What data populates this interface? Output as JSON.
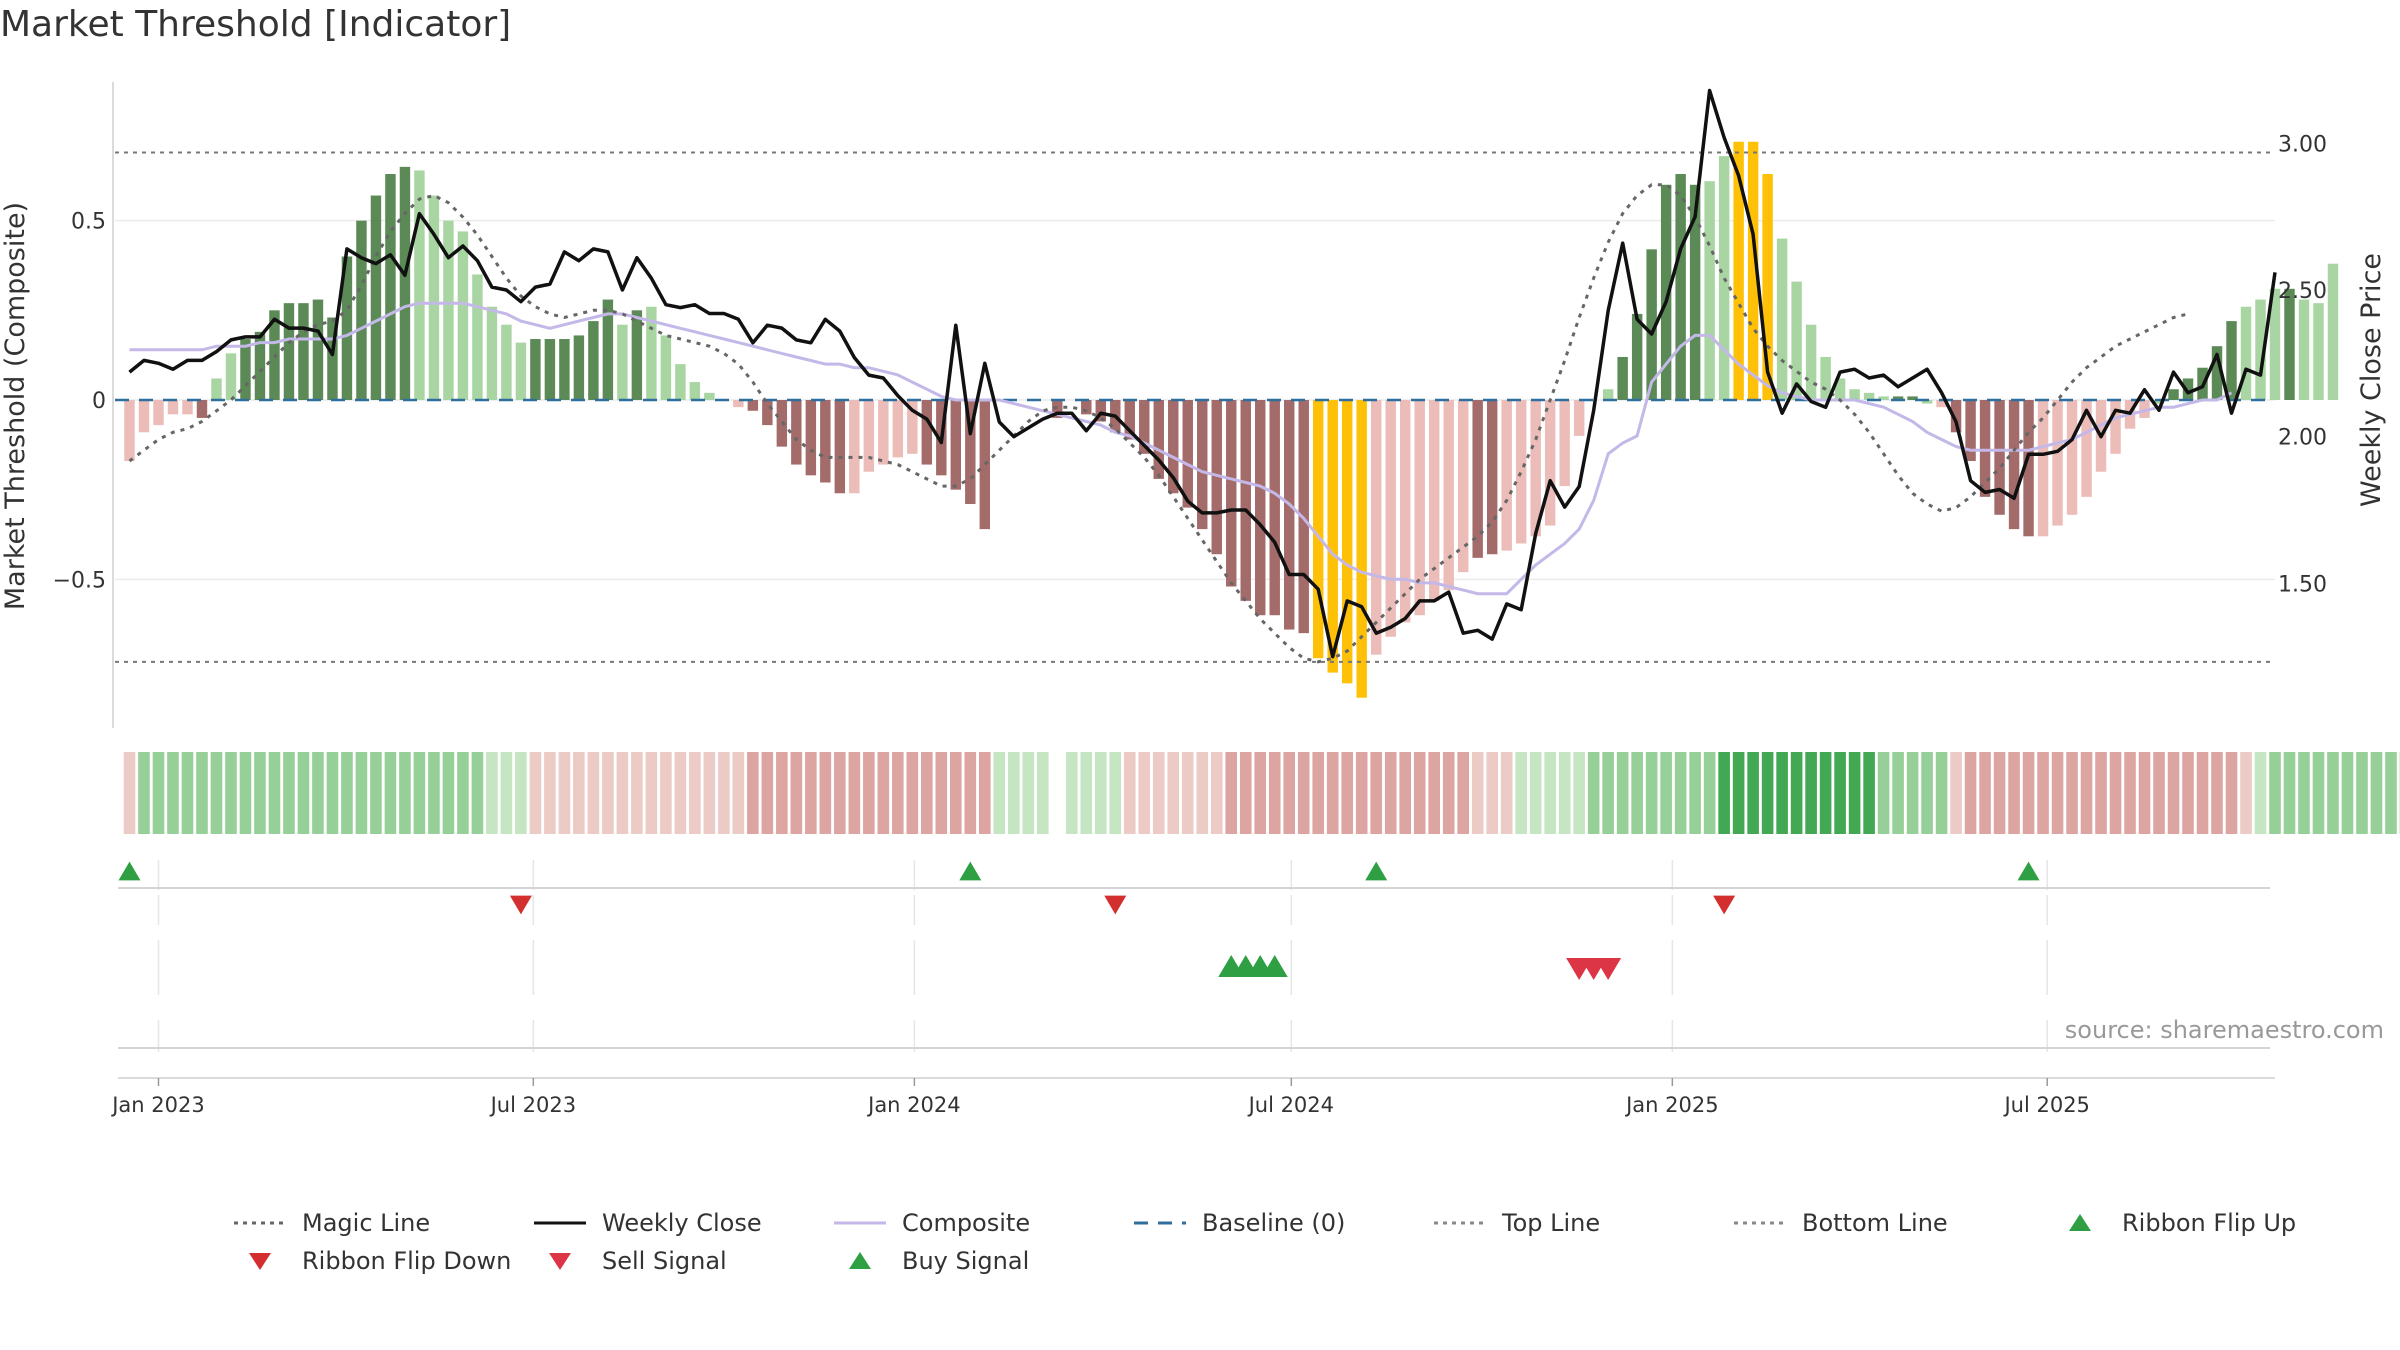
{
  "title": "Market Threshold [Indicator]",
  "source": "source: sharemaestro.com",
  "colors": {
    "strong_green": "#5b8a57",
    "light_green": "#a8d5a2",
    "strong_red": "#a36c6a",
    "light_red": "#ebbcb8",
    "gold": "#ffc107",
    "magic_line": "#666666",
    "weekly_close": "#111111",
    "composite": "#c3b8e8",
    "baseline": "#2e6f9e",
    "top_bottom_line": "#777777",
    "buy_green": "#2ea043",
    "sell_red": "#dc3545",
    "flip_down_red": "#d32f2f"
  },
  "chart_data": {
    "type": "bar",
    "x_axis": {
      "type": "date",
      "range": [
        "2022-12-11",
        "2025-10-19"
      ],
      "ticks": [
        {
          "date": "2023-01-01",
          "label": "Jan 2023"
        },
        {
          "date": "2023-07-01",
          "label": "Jul 2023"
        },
        {
          "date": "2024-01-01",
          "label": "Jan 2024"
        },
        {
          "date": "2024-07-01",
          "label": "Jul 2024"
        },
        {
          "date": "2025-01-01",
          "label": "Jan 2025"
        },
        {
          "date": "2025-07-01",
          "label": "Jul 2025"
        }
      ]
    },
    "y_left": {
      "label": "Market Threshold (Composite)",
      "range": [
        -0.92,
        0.92
      ],
      "ticks": [
        {
          "value": 0.5,
          "label": "0.5"
        },
        {
          "value": 0,
          "label": "0"
        },
        {
          "value": -0.5,
          "label": "−0.5"
        }
      ]
    },
    "y_right": {
      "label": "Weekly Close Price",
      "range": [
        1.0,
        3.25
      ],
      "ticks": [
        {
          "value": 1.5,
          "label": "1.50"
        },
        {
          "value": 2.0,
          "label": "2.00"
        },
        {
          "value": 2.5,
          "label": "2.50"
        },
        {
          "value": 3.0,
          "label": "3.00"
        }
      ]
    },
    "start_date": "2022-12-18",
    "bars": [
      -0.17,
      -0.09,
      -0.07,
      -0.04,
      -0.04,
      -0.05,
      0.06,
      0.13,
      0.17,
      0.19,
      0.25,
      0.27,
      0.27,
      0.28,
      0.23,
      0.4,
      0.5,
      0.57,
      0.63,
      0.65,
      0.64,
      0.57,
      0.5,
      0.47,
      0.35,
      0.26,
      0.21,
      0.16,
      0.17,
      0.17,
      0.17,
      0.18,
      0.22,
      0.28,
      0.21,
      0.25,
      0.26,
      0.18,
      0.1,
      0.05,
      0.02,
      0.0,
      -0.02,
      -0.03,
      -0.07,
      -0.13,
      -0.18,
      -0.21,
      -0.23,
      -0.26,
      -0.26,
      -0.2,
      -0.18,
      -0.16,
      -0.15,
      -0.18,
      -0.21,
      -0.25,
      -0.29,
      -0.36,
      0.0,
      0.0,
      0.0,
      0.0,
      -0.05,
      0.0,
      -0.04,
      -0.06,
      -0.09,
      -0.11,
      -0.15,
      -0.22,
      -0.26,
      -0.3,
      -0.36,
      -0.43,
      -0.52,
      -0.56,
      -0.6,
      -0.6,
      -0.64,
      -0.65,
      -0.72,
      -0.76,
      -0.79,
      -0.83,
      -0.71,
      -0.66,
      -0.62,
      -0.6,
      -0.56,
      -0.53,
      -0.48,
      -0.44,
      -0.43,
      -0.42,
      -0.4,
      -0.38,
      -0.35,
      -0.24,
      -0.1,
      0.0,
      0.03,
      0.12,
      0.24,
      0.42,
      0.6,
      0.63,
      0.6,
      0.61,
      0.68,
      0.72,
      0.72,
      0.63,
      0.45,
      0.33,
      0.21,
      0.12,
      0.06,
      0.03,
      0.02,
      0.01,
      0.01,
      0.01,
      -0.01,
      -0.02,
      -0.09,
      -0.17,
      -0.27,
      -0.32,
      -0.36,
      -0.38,
      -0.38,
      -0.35,
      -0.32,
      -0.27,
      -0.2,
      -0.15,
      -0.08,
      -0.05,
      -0.01,
      0.03,
      0.06,
      0.09,
      0.15,
      0.22,
      0.26,
      0.28,
      0.31,
      0.31,
      0.28,
      0.27,
      0.38
    ],
    "bar_colors": [
      "lr",
      "lr",
      "lr",
      "lr",
      "lr",
      "r",
      "lg",
      "lg",
      "g",
      "g",
      "g",
      "g",
      "g",
      "g",
      "g",
      "g",
      "g",
      "g",
      "g",
      "g",
      "lg",
      "lg",
      "lg",
      "lg",
      "lg",
      "lg",
      "lg",
      "lg",
      "g",
      "g",
      "g",
      "g",
      "g",
      "g",
      "lg",
      "g",
      "lg",
      "lg",
      "lg",
      "lg",
      "lg",
      "lr",
      "lr",
      "r",
      "r",
      "r",
      "r",
      "r",
      "r",
      "r",
      "lr",
      "lr",
      "lr",
      "lr",
      "lr",
      "r",
      "r",
      "r",
      "r",
      "r",
      "lg",
      "lg",
      "lg",
      "lg",
      "r",
      "lg",
      "r",
      "r",
      "r",
      "r",
      "r",
      "r",
      "r",
      "r",
      "r",
      "r",
      "r",
      "r",
      "r",
      "r",
      "r",
      "r",
      "y",
      "y",
      "y",
      "y",
      "lr",
      "lr",
      "lr",
      "lr",
      "lr",
      "lr",
      "lr",
      "r",
      "r",
      "lr",
      "lr",
      "lr",
      "lr",
      "lr",
      "lr",
      "lg",
      "lg",
      "g",
      "g",
      "g",
      "g",
      "g",
      "g",
      "lg",
      "lg",
      "y",
      "y",
      "y",
      "lg",
      "lg",
      "lg",
      "lg",
      "lg",
      "lg",
      "lg",
      "lg",
      "g",
      "g",
      "lg",
      "lr",
      "r",
      "r",
      "r",
      "r",
      "r",
      "r",
      "lr",
      "lr",
      "lr",
      "lr",
      "lr",
      "lr",
      "lr",
      "lr",
      "lg",
      "g",
      "g",
      "g",
      "g",
      "g",
      "lg",
      "lg",
      "lg",
      "g"
    ],
    "series": [
      {
        "name": "Magic Line",
        "axis": "left",
        "style": "dotted",
        "values": [
          -0.17,
          -0.14,
          -0.11,
          -0.09,
          -0.08,
          -0.06,
          -0.03,
          0.0,
          0.04,
          0.08,
          0.12,
          0.16,
          0.19,
          0.21,
          0.22,
          0.25,
          0.32,
          0.4,
          0.47,
          0.52,
          0.56,
          0.57,
          0.55,
          0.51,
          0.46,
          0.4,
          0.34,
          0.29,
          0.26,
          0.24,
          0.23,
          0.24,
          0.25,
          0.25,
          0.24,
          0.22,
          0.2,
          0.18,
          0.17,
          0.16,
          0.15,
          0.13,
          0.1,
          0.05,
          -0.01,
          -0.06,
          -0.11,
          -0.14,
          -0.16,
          -0.16,
          -0.16,
          -0.16,
          -0.17,
          -0.18,
          -0.2,
          -0.22,
          -0.24,
          -0.24,
          -0.22,
          -0.18,
          -0.14,
          -0.1,
          -0.06,
          -0.03,
          -0.02,
          -0.02,
          -0.03,
          -0.05,
          -0.08,
          -0.12,
          -0.16,
          -0.21,
          -0.27,
          -0.33,
          -0.39,
          -0.45,
          -0.51,
          -0.56,
          -0.61,
          -0.65,
          -0.69,
          -0.72,
          -0.73,
          -0.72,
          -0.7,
          -0.66,
          -0.62,
          -0.58,
          -0.54,
          -0.5,
          -0.47,
          -0.44,
          -0.41,
          -0.38,
          -0.34,
          -0.28,
          -0.2,
          -0.11,
          0.0,
          0.11,
          0.23,
          0.34,
          0.44,
          0.52,
          0.57,
          0.6,
          0.6,
          0.57,
          0.51,
          0.43,
          0.34,
          0.27,
          0.2,
          0.15,
          0.11,
          0.08,
          0.05,
          0.03,
          0.0,
          -0.04,
          -0.09,
          -0.15,
          -0.21,
          -0.26,
          -0.29,
          -0.31,
          -0.3,
          -0.27,
          -0.23,
          -0.19,
          -0.14,
          -0.09,
          -0.05,
          0.0,
          0.05,
          0.09,
          0.12,
          0.15,
          0.17,
          0.19,
          0.21,
          0.23,
          0.24
        ]
      },
      {
        "name": "Weekly Close",
        "axis": "right",
        "style": "solid",
        "values": [
          2.22,
          2.26,
          2.25,
          2.23,
          2.26,
          2.26,
          2.29,
          2.33,
          2.34,
          2.34,
          2.4,
          2.37,
          2.37,
          2.36,
          2.28,
          2.64,
          2.61,
          2.59,
          2.62,
          2.55,
          2.76,
          2.69,
          2.61,
          2.65,
          2.6,
          2.51,
          2.5,
          2.46,
          2.51,
          2.52,
          2.63,
          2.6,
          2.64,
          2.63,
          2.5,
          2.61,
          2.54,
          2.45,
          2.44,
          2.45,
          2.42,
          2.42,
          2.4,
          2.32,
          2.38,
          2.37,
          2.33,
          2.32,
          2.4,
          2.36,
          2.27,
          2.21,
          2.2,
          2.14,
          2.09,
          2.06,
          1.98,
          2.38,
          2.01,
          2.25,
          2.05,
          2.0,
          2.03,
          2.06,
          2.08,
          2.08,
          2.02,
          2.08,
          2.07,
          2.02,
          1.97,
          1.92,
          1.86,
          1.78,
          1.74,
          1.74,
          1.75,
          1.75,
          1.7,
          1.64,
          1.53,
          1.53,
          1.48,
          1.25,
          1.44,
          1.42,
          1.33,
          1.35,
          1.38,
          1.44,
          1.44,
          1.47,
          1.33,
          1.34,
          1.31,
          1.43,
          1.41,
          1.67,
          1.85,
          1.76,
          1.83,
          2.09,
          2.43,
          2.66,
          2.4,
          2.35,
          2.46,
          2.64,
          2.75,
          3.18,
          3.02,
          2.89,
          2.69,
          2.22,
          2.08,
          2.18,
          2.12,
          2.1,
          2.22,
          2.23,
          2.2,
          2.21,
          2.17,
          2.2,
          2.23,
          2.15,
          2.05,
          1.85,
          1.81,
          1.82,
          1.79,
          1.94,
          1.94,
          1.95,
          1.99,
          2.09,
          2.0,
          2.09,
          2.08,
          2.16,
          2.09,
          2.22,
          2.15,
          2.17,
          2.28,
          2.08,
          2.23,
          2.21,
          2.56
        ]
      },
      {
        "name": "Composite",
        "axis": "left",
        "style": "solid",
        "values": [
          0.14,
          0.14,
          0.14,
          0.14,
          0.14,
          0.14,
          0.15,
          0.15,
          0.15,
          0.16,
          0.16,
          0.17,
          0.17,
          0.17,
          0.17,
          0.18,
          0.2,
          0.22,
          0.24,
          0.26,
          0.27,
          0.27,
          0.27,
          0.27,
          0.26,
          0.25,
          0.24,
          0.22,
          0.21,
          0.2,
          0.21,
          0.22,
          0.23,
          0.24,
          0.24,
          0.23,
          0.22,
          0.21,
          0.2,
          0.19,
          0.18,
          0.17,
          0.16,
          0.15,
          0.14,
          0.13,
          0.12,
          0.11,
          0.1,
          0.1,
          0.09,
          0.09,
          0.08,
          0.07,
          0.05,
          0.03,
          0.01,
          0.0,
          0.0,
          0.0,
          0.0,
          -0.01,
          -0.02,
          -0.03,
          -0.04,
          -0.05,
          -0.06,
          -0.07,
          -0.09,
          -0.1,
          -0.12,
          -0.14,
          -0.16,
          -0.18,
          -0.2,
          -0.21,
          -0.22,
          -0.23,
          -0.24,
          -0.26,
          -0.29,
          -0.33,
          -0.38,
          -0.43,
          -0.46,
          -0.48,
          -0.49,
          -0.5,
          -0.5,
          -0.51,
          -0.51,
          -0.52,
          -0.53,
          -0.54,
          -0.54,
          -0.54,
          -0.5,
          -0.46,
          -0.43,
          -0.4,
          -0.36,
          -0.28,
          -0.15,
          -0.12,
          -0.1,
          0.05,
          0.1,
          0.15,
          0.18,
          0.18,
          0.14,
          0.1,
          0.07,
          0.04,
          0.02,
          0.01,
          0.0,
          0.0,
          0.0,
          0.0,
          -0.01,
          -0.02,
          -0.04,
          -0.06,
          -0.09,
          -0.11,
          -0.13,
          -0.14,
          -0.14,
          -0.14,
          -0.14,
          -0.14,
          -0.13,
          -0.12,
          -0.11,
          -0.09,
          -0.07,
          -0.05,
          -0.04,
          -0.03,
          -0.02,
          -0.02,
          -0.01,
          0.0,
          0.0,
          0.02
        ]
      },
      {
        "name": "Baseline (0)",
        "axis": "left",
        "style": "dashed",
        "value": 0
      },
      {
        "name": "Top Line",
        "axis": "left",
        "style": "dotted",
        "value": 0.69
      },
      {
        "name": "Bottom Line",
        "axis": "left",
        "style": "dotted",
        "value": -0.73
      }
    ],
    "ribbon": {
      "start_date": "2022-12-18",
      "cells": [
        -1,
        2,
        2,
        2,
        2,
        2,
        2,
        2,
        2,
        2,
        2,
        2,
        2,
        2,
        2,
        2,
        2,
        2,
        2,
        2,
        2,
        2,
        2,
        2,
        2,
        1,
        1,
        1,
        -1,
        -1,
        -1,
        -1,
        -1,
        -1,
        -1,
        -1,
        -1,
        -1,
        -1,
        -1,
        -1,
        -1,
        -1,
        -2,
        -2,
        -2,
        -2,
        -2,
        -2,
        -2,
        -2,
        -2,
        -2,
        -2,
        -2,
        -2,
        -2,
        -2,
        -2,
        -2,
        1,
        1,
        1,
        1,
        0,
        1,
        1,
        1,
        1,
        -1,
        -1,
        -1,
        -1,
        -1,
        -1,
        -1,
        -2,
        -2,
        -2,
        -2,
        -2,
        -2,
        -2,
        -2,
        -2,
        -2,
        -2,
        -2,
        -2,
        -2,
        -2,
        -2,
        -2,
        -1,
        -1,
        -1,
        1,
        1,
        1,
        1,
        1,
        2,
        2,
        2,
        2,
        2,
        2,
        2,
        2,
        2,
        3,
        3,
        3,
        3,
        3,
        3,
        3,
        3,
        3,
        3,
        3,
        2,
        2,
        2,
        2,
        2,
        -1,
        -2,
        -2,
        -2,
        -2,
        -2,
        -2,
        -2,
        -2,
        -2,
        -2,
        -2,
        -2,
        -2,
        -2,
        -2,
        -2,
        -2,
        -2,
        -2,
        -1,
        1,
        2,
        2,
        2,
        2,
        2,
        2,
        2,
        2,
        2,
        2,
        2,
        2
      ]
    },
    "markers": {
      "ribbon_flip_up": [
        "2022-12-18",
        "2024-01-28",
        "2024-08-11",
        "2025-06-22"
      ],
      "ribbon_flip_down": [
        "2023-06-25",
        "2024-04-07",
        "2025-01-26"
      ],
      "buy_signal": [
        "2024-06-02",
        "2024-06-09",
        "2024-06-16",
        "2024-06-23"
      ],
      "sell_signal": [
        "2024-11-17",
        "2024-11-24",
        "2024-12-01"
      ]
    },
    "legend": [
      {
        "label": "Magic Line",
        "kind": "dotted",
        "color": "#666666"
      },
      {
        "label": "Weekly Close",
        "kind": "solid",
        "color": "#111111"
      },
      {
        "label": "Composite",
        "kind": "solid",
        "color": "#c3b8e8"
      },
      {
        "label": "Baseline (0)",
        "kind": "dashed",
        "color": "#2e6f9e"
      },
      {
        "label": "Top Line",
        "kind": "dotted",
        "color": "#888888"
      },
      {
        "label": "Bottom Line",
        "kind": "dotted",
        "color": "#888888"
      },
      {
        "label": "Ribbon Flip Up",
        "kind": "tri-up",
        "color": "#2ea043"
      },
      {
        "label": "Ribbon Flip Down",
        "kind": "tri-down",
        "color": "#d32f2f"
      },
      {
        "label": "Sell Signal",
        "kind": "tri-down",
        "color": "#dc3545"
      },
      {
        "label": "Buy Signal",
        "kind": "tri-up",
        "color": "#2ea043"
      }
    ]
  }
}
